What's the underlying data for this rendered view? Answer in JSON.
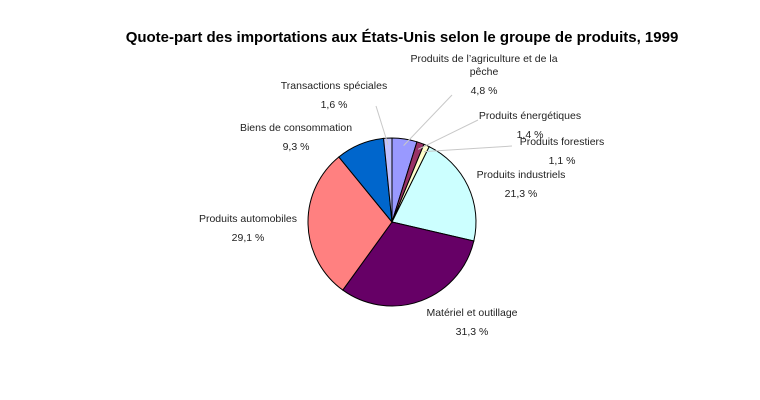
{
  "chart_data": {
    "type": "pie",
    "title": "Quote-part des importations aux États-Unis selon le groupe de produits, 1999",
    "slices": [
      {
        "name": "Produits de l’agriculture et de la pêche",
        "name_lines": [
          "Produits de l’agriculture et de la",
          "pêche"
        ],
        "value": 4.8,
        "label": "4,8 %",
        "color": "#9999ff"
      },
      {
        "name": "Produits énergétiques",
        "name_lines": [
          "Produits énergétiques"
        ],
        "value": 1.4,
        "label": "1,4 %",
        "color": "#993366"
      },
      {
        "name": "Produits forestiers",
        "name_lines": [
          "Produits forestiers"
        ],
        "value": 1.1,
        "label": "1,1 %",
        "color": "#ffffcc"
      },
      {
        "name": "Produits industriels",
        "name_lines": [
          "Produits industriels"
        ],
        "value": 21.3,
        "label": "21,3 %",
        "color": "#ccffff"
      },
      {
        "name": "Matériel et outillage",
        "name_lines": [
          "Matériel et outillage"
        ],
        "value": 31.3,
        "label": "31,3 %",
        "color": "#660066"
      },
      {
        "name": "Produits automobiles",
        "name_lines": [
          "Produits automobiles"
        ],
        "value": 29.1,
        "label": "29,1 %",
        "color": "#ff8080"
      },
      {
        "name": "Biens de consommation",
        "name_lines": [
          "Biens de consommation"
        ],
        "value": 9.3,
        "label": "9,3 %",
        "color": "#0066cc"
      },
      {
        "name": "Transactions spéciales",
        "name_lines": [
          "Transactions spéciales"
        ],
        "value": 1.6,
        "label": "1,6 %",
        "color": "#c0c0ff"
      }
    ],
    "start_angle_deg": 0,
    "direction": "clockwise",
    "legend": "none"
  }
}
